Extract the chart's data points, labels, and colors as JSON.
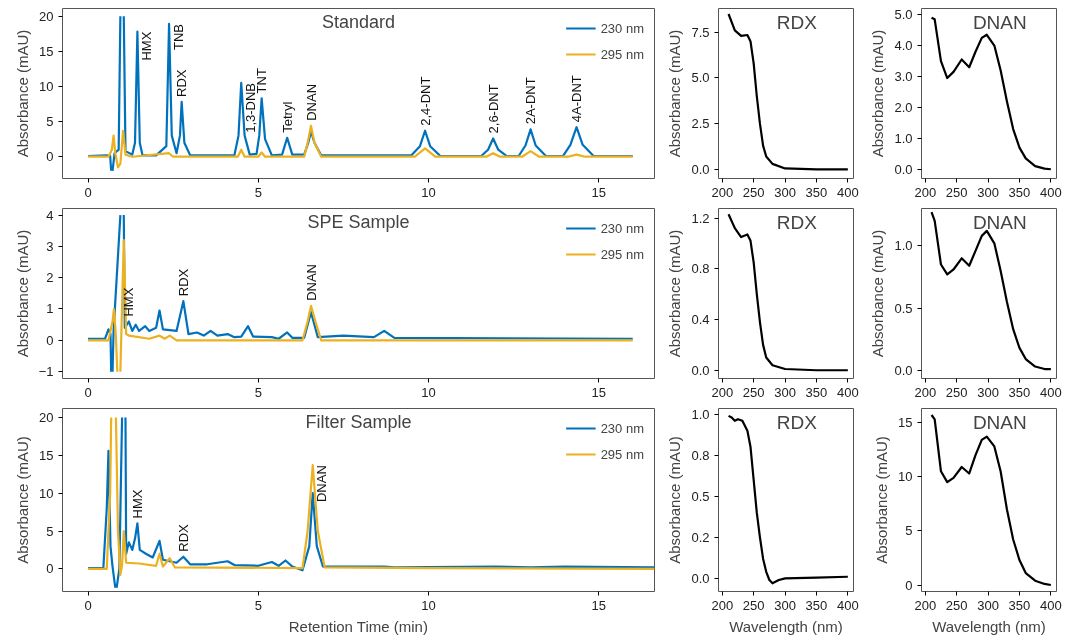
{
  "chart_data": [
    {
      "type": "line",
      "title": "Standard",
      "ylabel": "Absorbance (mAU)",
      "xlim": [
        -0.75,
        16.64
      ],
      "ylim": [
        -3.1,
        21.1
      ],
      "xticks": [
        0,
        5,
        10,
        15
      ],
      "yticks": [
        0,
        5,
        10,
        15,
        20
      ],
      "legend": "top right",
      "grid": false,
      "series": [
        {
          "name": "230 nm",
          "color": "#0072bd",
          "x": [
            0,
            0.55,
            0.65,
            0.68,
            0.7,
            0.72,
            0.78,
            0.9,
            0.95,
            1.0,
            1.05,
            1.1,
            1.3,
            1.38,
            1.45,
            1.52,
            1.6,
            2.0,
            2.3,
            2.38,
            2.46,
            2.6,
            2.7,
            2.75,
            2.83,
            3.0,
            4.3,
            4.42,
            4.5,
            4.6,
            4.75,
            4.95,
            5.03,
            5.1,
            5.2,
            5.4,
            5.7,
            5.85,
            6.0,
            6.35,
            6.47,
            6.55,
            6.65,
            6.85,
            9.5,
            9.75,
            9.9,
            10.05,
            10.35,
            11.55,
            11.75,
            11.9,
            12.05,
            12.3,
            12.65,
            12.85,
            13.0,
            13.15,
            13.45,
            13.95,
            14.17,
            14.35,
            14.53,
            14.85,
            16
          ],
          "values": [
            0.1,
            0.2,
            0.1,
            -2.0,
            null,
            -2.0,
            0.5,
            1.0,
            20.0,
            null,
            20.0,
            0.8,
            0.3,
            2.0,
            17.8,
            2.0,
            0.2,
            0.2,
            1.5,
            18.9,
            3.0,
            0.5,
            3.0,
            7.8,
            2.0,
            0.2,
            0.2,
            3.0,
            10.5,
            3.0,
            0.3,
            0.4,
            3.0,
            8.3,
            2.5,
            0.2,
            0.3,
            2.7,
            0.3,
            0.3,
            2.0,
            3.6,
            2.0,
            0.2,
            0.2,
            1.5,
            3.7,
            1.5,
            0.1,
            0.1,
            1.0,
            2.6,
            1.0,
            0.1,
            0.1,
            1.6,
            3.9,
            1.6,
            0.1,
            0.1,
            1.7,
            4.2,
            1.7,
            0.1,
            0.1
          ]
        },
        {
          "name": "295 nm",
          "color": "#edb120",
          "x": [
            0,
            0.6,
            0.7,
            0.75,
            0.8,
            0.88,
            0.95,
            1.03,
            1.1,
            1.3,
            2.38,
            2.5,
            4.4,
            4.5,
            4.6,
            5.0,
            5.1,
            5.2,
            6.35,
            6.45,
            6.55,
            6.65,
            6.85,
            9.6,
            9.9,
            10.2,
            11.7,
            11.9,
            12.1,
            12.75,
            13.0,
            13.25,
            14.1,
            14.35,
            14.6,
            16
          ],
          "values": [
            0,
            0,
            1.0,
            3.0,
            0.5,
            -1.5,
            -1.0,
            3.7,
            0.3,
            0,
            0.5,
            0,
            0,
            1.0,
            0,
            0,
            0.6,
            0,
            0,
            2.0,
            4.4,
            2.0,
            0,
            0,
            1.2,
            0,
            0,
            0.5,
            0,
            0,
            0.8,
            0,
            0,
            0.3,
            0,
            0
          ]
        }
      ],
      "annotations": [
        {
          "text": "HMX",
          "x": 1.45,
          "y": 17.8
        },
        {
          "text": "TNB",
          "x": 2.38,
          "y": 18.9
        },
        {
          "text": "RDX",
          "x": 2.75,
          "y": 7.8
        },
        {
          "text": "1,3-DNB",
          "x": 4.5,
          "y": 10.5
        },
        {
          "text": "TNT",
          "x": 5.1,
          "y": 8.3
        },
        {
          "text": "Tetryl",
          "x": 5.85,
          "y": 2.7
        },
        {
          "text": "DNAN",
          "x": 6.55,
          "y": 4.4
        },
        {
          "text": "2,4-DNT",
          "x": 9.9,
          "y": 3.7
        },
        {
          "text": "2,6-DNT",
          "x": 11.9,
          "y": 2.6
        },
        {
          "text": "2A-DNT",
          "x": 13.0,
          "y": 3.9
        },
        {
          "text": "4A-DNT",
          "x": 14.35,
          "y": 4.2
        }
      ]
    },
    {
      "type": "line",
      "title": "RDX",
      "ylabel": "Absorbance (mAU)",
      "xlim": [
        194,
        409
      ],
      "ylim": [
        -0.5,
        8.8
      ],
      "xticks": [
        200,
        250,
        300,
        350,
        400
      ],
      "yticks": [
        {
          "value": 0,
          "label": "0.0"
        },
        2.5,
        {
          "value": 5,
          "label": "5.0"
        },
        7.5
      ],
      "grid": false,
      "color": "#000000",
      "x": [
        210,
        220,
        230,
        240,
        245,
        250,
        255,
        260,
        265,
        270,
        280,
        300,
        350,
        400
      ],
      "values": [
        8.5,
        7.6,
        7.3,
        7.35,
        7.0,
        5.8,
        4.0,
        2.5,
        1.3,
        0.7,
        0.3,
        0.05,
        0.0,
        0.0
      ]
    },
    {
      "type": "line",
      "title": "DNAN",
      "ylabel": "Absorbance (mAU)",
      "xlim": [
        194,
        409
      ],
      "ylim": [
        -0.3,
        5.2
      ],
      "xticks": [
        200,
        250,
        300,
        350,
        400
      ],
      "yticks": [
        {
          "value": 0,
          "label": "0.0"
        },
        {
          "value": 1,
          "label": "1.0"
        },
        {
          "value": 2,
          "label": "2.0"
        },
        {
          "value": 3,
          "label": "3.0"
        },
        {
          "value": 4,
          "label": "4.0"
        },
        {
          "value": 5,
          "label": "5.0"
        }
      ],
      "grid": false,
      "color": "#000000",
      "x": [
        210,
        215,
        225,
        235,
        245,
        258,
        270,
        280,
        290,
        298,
        310,
        320,
        330,
        340,
        350,
        360,
        375,
        390,
        400
      ],
      "values": [
        4.9,
        4.85,
        3.5,
        2.95,
        3.15,
        3.55,
        3.3,
        3.8,
        4.25,
        4.35,
        4.0,
        3.2,
        2.2,
        1.3,
        0.7,
        0.35,
        0.1,
        0.02,
        0.0
      ]
    },
    {
      "type": "line",
      "title": "SPE Sample",
      "ylabel": "Absorbance (mAU)",
      "xlim": [
        -0.75,
        16.64
      ],
      "ylim": [
        -1.22,
        4.21
      ],
      "xticks": [
        0,
        5,
        10,
        15
      ],
      "yticks": [
        -1,
        0,
        1,
        2,
        3,
        4
      ],
      "legend": "top right",
      "grid": false,
      "series": [
        {
          "name": "230 nm",
          "color": "#0072bd",
          "x": [
            0,
            0.5,
            0.6,
            0.66,
            0.68,
            0.7,
            0.72,
            0.75,
            0.95,
            1.0,
            1.05,
            1.08,
            1.2,
            1.3,
            1.4,
            1.5,
            1.68,
            1.8,
            2.0,
            2.1,
            2.2,
            2.6,
            2.8,
            2.95,
            3.2,
            3.4,
            3.6,
            3.8,
            4.1,
            4.3,
            4.5,
            4.7,
            4.85,
            5.4,
            5.6,
            5.85,
            6.0,
            6.35,
            6.55,
            6.75,
            7.5,
            8.4,
            8.7,
            9.0,
            16
          ],
          "values": [
            0.05,
            0.05,
            0.35,
            0.2,
            -1.0,
            null,
            -1.0,
            0.3,
            4.0,
            null,
            4.0,
            0.4,
            0.6,
            0.3,
            0.5,
            0.3,
            0.45,
            0.3,
            0.4,
            0.95,
            0.35,
            0.3,
            1.25,
            0.2,
            0.25,
            0.15,
            0.3,
            0.15,
            0.2,
            0.1,
            0.12,
            0.45,
            0.12,
            0.1,
            0.05,
            0.25,
            0.08,
            0.08,
            0.9,
            0.1,
            0.15,
            0.1,
            0.3,
            0.08,
            0.05
          ]
        },
        {
          "name": "295 nm",
          "color": "#edb120",
          "x": [
            0,
            0.6,
            0.72,
            0.76,
            0.82,
            0.86,
            0.88,
            0.95,
            1.05,
            1.12,
            1.2,
            1.8,
            2.1,
            2.25,
            2.4,
            2.6,
            6.3,
            6.45,
            6.55,
            6.68,
            6.85,
            16
          ],
          "values": [
            0,
            0,
            0.6,
            1.0,
            0.1,
            -1.0,
            null,
            -1.0,
            3.2,
            0.2,
            0.15,
            0.05,
            0.15,
            0.05,
            0.15,
            0,
            0,
            0.6,
            1.1,
            0.6,
            0,
            0
          ]
        }
      ],
      "annotations": [
        {
          "text": "HMX",
          "x": 1.2,
          "y": 0.6
        },
        {
          "text": "RDX",
          "x": 2.8,
          "y": 1.25
        },
        {
          "text": "DNAN",
          "x": 6.55,
          "y": 1.1
        }
      ]
    },
    {
      "type": "line",
      "title": "RDX",
      "ylabel": "Absorbance (mAU)",
      "xlim": [
        194,
        409
      ],
      "ylim": [
        -0.065,
        1.275
      ],
      "xticks": [
        200,
        250,
        300,
        350,
        400
      ],
      "yticks": [
        {
          "value": 0,
          "label": "0.0"
        },
        0.4,
        0.8,
        1.2
      ],
      "grid": false,
      "color": "#000000",
      "x": [
        210,
        220,
        230,
        240,
        245,
        250,
        255,
        260,
        265,
        270,
        280,
        300,
        350,
        400
      ],
      "values": [
        1.23,
        1.12,
        1.05,
        1.07,
        1.02,
        0.85,
        0.6,
        0.38,
        0.2,
        0.1,
        0.04,
        0.01,
        0.0,
        0.0
      ]
    },
    {
      "type": "line",
      "title": "DNAN",
      "ylabel": "Absorbance (mAU)",
      "xlim": [
        194,
        409
      ],
      "ylim": [
        -0.066,
        1.3
      ],
      "xticks": [
        200,
        250,
        300,
        350,
        400
      ],
      "yticks": [
        {
          "value": 0,
          "label": "0.0"
        },
        0.5,
        {
          "value": 1,
          "label": "1.0"
        }
      ],
      "grid": false,
      "color": "#000000",
      "x": [
        210,
        215,
        225,
        235,
        245,
        258,
        270,
        280,
        290,
        298,
        310,
        320,
        330,
        340,
        350,
        360,
        375,
        390,
        400
      ],
      "values": [
        1.27,
        1.2,
        0.85,
        0.77,
        0.81,
        0.9,
        0.84,
        0.96,
        1.08,
        1.12,
        1.02,
        0.8,
        0.55,
        0.33,
        0.18,
        0.09,
        0.03,
        0.01,
        0.01
      ]
    },
    {
      "type": "line",
      "title": "Filter Sample",
      "xlabel": "Retention Time (min)",
      "ylabel": "Absorbance (mAU)",
      "xlim": [
        -0.75,
        16.64
      ],
      "ylim": [
        -3.0,
        21.2
      ],
      "xticks": [
        0,
        5,
        10,
        15
      ],
      "yticks": [
        0,
        5,
        10,
        15,
        20
      ],
      "legend": "top right",
      "grid": false,
      "series": [
        {
          "name": "230 nm",
          "color": "#0072bd",
          "x": [
            0,
            0.45,
            0.55,
            0.6,
            0.66,
            0.72,
            0.8,
            0.82,
            0.84,
            0.92,
            1.0,
            1.05,
            1.1,
            1.12,
            1.2,
            1.3,
            1.38,
            1.45,
            1.52,
            1.7,
            1.9,
            2.1,
            2.2,
            2.6,
            2.8,
            3.0,
            3.5,
            4.1,
            4.3,
            5.0,
            5.4,
            5.6,
            5.8,
            6.0,
            6.3,
            6.5,
            6.6,
            6.72,
            6.9,
            8.7,
            9.0,
            12.0,
            13.0,
            14.0,
            16.64
          ],
          "values": [
            0.1,
            0.1,
            8,
            15.6,
            3,
            0.3,
            -2.5,
            null,
            -2.5,
            0,
            20.0,
            null,
            20.0,
            2,
            3.5,
            2.5,
            4,
            6.0,
            2.5,
            2.0,
            1.5,
            3.7,
            1.2,
            0.8,
            1.6,
            0.6,
            0.6,
            1.0,
            0.5,
            0.4,
            0.9,
            0.4,
            1.1,
            0.3,
            -0.2,
            3.0,
            10.0,
            3.0,
            0.3,
            0.3,
            0.2,
            0.3,
            0.2,
            0.3,
            0.2
          ]
        },
        {
          "name": "295 nm",
          "color": "#edb120",
          "x": [
            0,
            0.55,
            0.65,
            0.68,
            0.75,
            0.82,
            0.88,
            0.95,
            1.0,
            1.05,
            1.12,
            1.5,
            2.0,
            2.1,
            2.2,
            2.4,
            2.55,
            6.3,
            6.45,
            6.6,
            6.75,
            6.95,
            10,
            16.64
          ],
          "values": [
            0,
            0,
            10,
            20.0,
            null,
            20.0,
            5,
            -0.8,
            0.5,
            5.0,
            0.8,
            0.7,
            0.4,
            2.0,
            0.3,
            1.4,
            0.2,
            0.1,
            5,
            13.7,
            5,
            0.2,
            0.1,
            0
          ]
        }
      ],
      "annotations": [
        {
          "text": "HMX",
          "x": 1.45,
          "y": 6.0
        },
        {
          "text": "RDX",
          "x": 2.8,
          "y": 1.6
        },
        {
          "text": "DNAN",
          "x": 6.6,
          "y": 13.7
        }
      ]
    },
    {
      "type": "line",
      "title": "RDX",
      "xlabel": "Wavelength (nm)",
      "ylabel": "Absorbance (mAU)",
      "xlim": [
        194,
        409
      ],
      "ylim": [
        -0.08,
        1.035
      ],
      "xticks": [
        200,
        250,
        300,
        350,
        400
      ],
      "yticks": [
        {
          "value": 0,
          "label": "0.0"
        },
        {
          "value": 0.25,
          "label": "0.2"
        },
        0.5,
        {
          "value": 0.75,
          "label": "0.8"
        },
        {
          "value": 1,
          "label": "1.0"
        }
      ],
      "grid": false,
      "color": "#000000",
      "x": [
        210,
        215,
        220,
        225,
        232,
        240,
        245,
        250,
        255,
        260,
        265,
        270,
        275,
        280,
        290,
        300,
        350,
        400
      ],
      "values": [
        0.99,
        0.98,
        0.96,
        0.97,
        0.96,
        0.9,
        0.8,
        0.6,
        0.4,
        0.25,
        0.12,
        0.04,
        -0.01,
        -0.03,
        -0.01,
        0.0,
        0.005,
        0.01
      ]
    },
    {
      "type": "line",
      "title": "DNAN",
      "xlabel": "Wavelength (nm)",
      "ylabel": "Absorbance (mAU)",
      "xlim": [
        194,
        409
      ],
      "ylim": [
        -0.6,
        16.3
      ],
      "xticks": [
        200,
        250,
        300,
        350,
        400
      ],
      "yticks": [
        0,
        5,
        10,
        15
      ],
      "grid": false,
      "color": "#000000",
      "x": [
        210,
        215,
        225,
        235,
        245,
        258,
        270,
        280,
        290,
        298,
        310,
        320,
        330,
        340,
        350,
        360,
        375,
        390,
        400
      ],
      "values": [
        15.7,
        15.3,
        10.5,
        9.5,
        9.9,
        10.9,
        10.3,
        12.0,
        13.4,
        13.7,
        12.8,
        10.5,
        7.0,
        4.2,
        2.3,
        1.1,
        0.4,
        0.1,
        0.0
      ]
    }
  ]
}
